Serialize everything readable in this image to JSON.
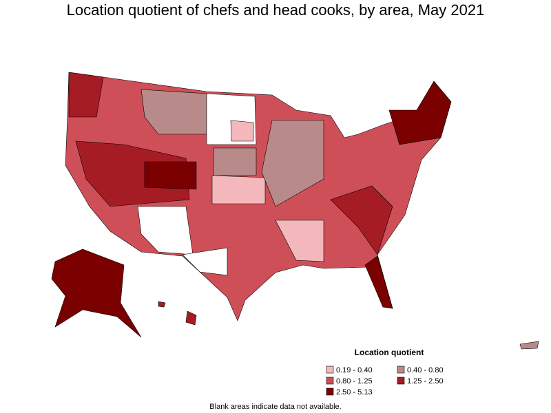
{
  "title": "Location quotient of chefs and head cooks, by area, May 2021",
  "legend": {
    "title": "Location quotient",
    "items": [
      {
        "label": "0.19 - 0.40",
        "color": "#f4b8bc"
      },
      {
        "label": "0.40 - 0.80",
        "color": "#b88a8a"
      },
      {
        "label": "0.80 - 1.25",
        "color": "#cf4f58"
      },
      {
        "label": "1.25 - 2.50",
        "color": "#a61c24"
      },
      {
        "label": "2.50 - 5.13",
        "color": "#7b0000"
      }
    ]
  },
  "note": "Blank areas indicate data not available."
}
